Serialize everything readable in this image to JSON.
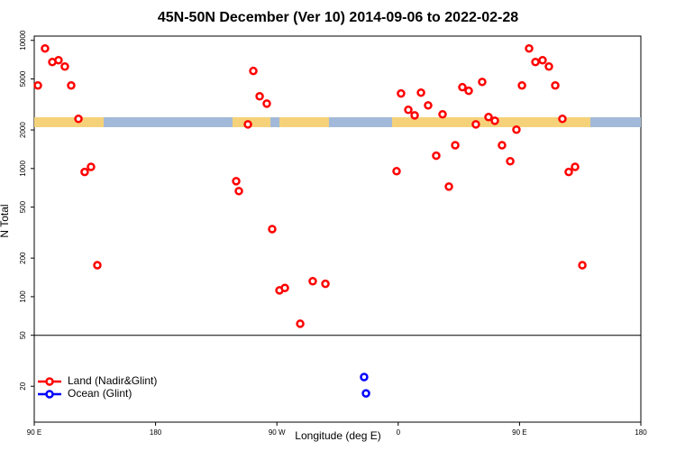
{
  "chart_data": {
    "type": "scatter",
    "title": "45N-50N December (Ver 10)   2014-09-06 to 2022-02-28",
    "x_label": "Longitude (deg E)",
    "y_label": "N Total",
    "xlim": [
      90,
      540
    ],
    "ylim": [
      10.5,
      10800
    ],
    "log_y": true,
    "hline": 50,
    "xticks": [
      {
        "value": 90,
        "label": "90 E"
      },
      {
        "value": 180,
        "label": "180"
      },
      {
        "value": 270,
        "label": "90 W"
      },
      {
        "value": 360,
        "label": "0"
      },
      {
        "value": 450,
        "label": "90 E"
      },
      {
        "value": 540,
        "label": "180"
      }
    ],
    "yticks": [
      20,
      50,
      100,
      200,
      500,
      1000,
      2000,
      5000,
      10000
    ],
    "legend": "bottom-left",
    "series": [
      {
        "name": "Land (Nadir&Glint)",
        "color": "#ff0000",
        "x": [
          92.7,
          98,
          103.4,
          108,
          112.7,
          117.4,
          122.8,
          127.4,
          132.1,
          136.8,
          239.8,
          241.8,
          248.5,
          252.5,
          257.2,
          262.5,
          266.5,
          271.9,
          275.9,
          287.3,
          296.6,
          306,
          358.8,
          362.1,
          367.5,
          372.2,
          376.9,
          382.2,
          388.2,
          392.9,
          397.6,
          402.3,
          407.6,
          412.3,
          417.6,
          422.3,
          427,
          431.7,
          437,
          443.1,
          447.7,
          451.8,
          457.1,
          461.8,
          467.1,
          471.8,
          476.5,
          481.8,
          486.5,
          491.2,
          496.6
        ],
        "values": [
          4450,
          8650,
          6780,
          7000,
          6250,
          4450,
          2440,
          940,
          1030,
          176,
          797,
          667,
          2210,
          5770,
          3660,
          3210,
          337,
          112,
          117,
          61.5,
          132,
          126,
          953,
          3850,
          2870,
          2600,
          3910,
          3110,
          1260,
          2650,
          723,
          1520,
          4310,
          4040,
          2210,
          4740,
          2520,
          2360,
          1520,
          1140,
          2010,
          4450,
          8650,
          6780,
          7000,
          6250,
          4450,
          2440,
          940,
          1030,
          176
        ]
      },
      {
        "name": "Ocean (Glint)",
        "color": "#0000ff",
        "x": [
          334.7,
          336.1
        ],
        "values": [
          23.6,
          17.6
        ]
      }
    ]
  }
}
